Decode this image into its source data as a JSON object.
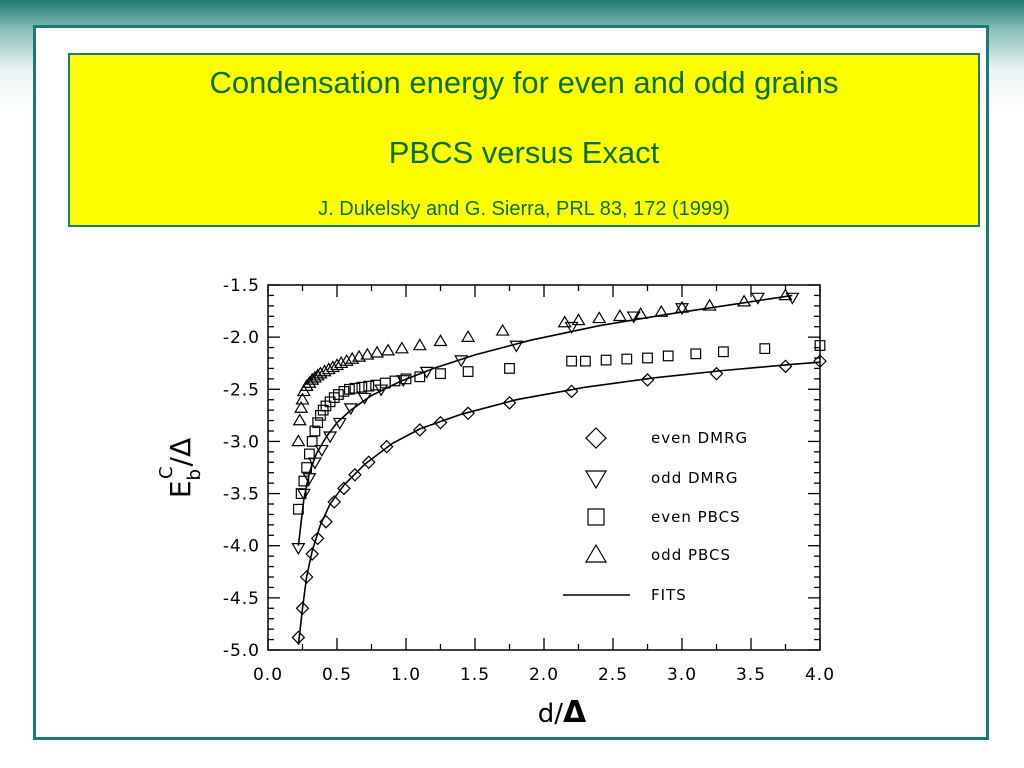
{
  "slide": {
    "title_line1": "Condensation energy for even and odd grains",
    "title_line2": "PBCS versus Exact",
    "citation": "J. Dukelsky and G. Sierra, PRL 83, 172 (1999)"
  },
  "colors": {
    "frame": "#1b7a73",
    "title_box": "#ffff00",
    "title_text": "#0a6e2a"
  },
  "chart_data": {
    "type": "scatter",
    "xlabel_main": "d/",
    "xlabel_symbol": "Δ",
    "ylabel_main": "E",
    "ylabel_sub": "b",
    "ylabel_sup": "C",
    "ylabel_tail": "/Δ",
    "xlim": [
      0.0,
      4.0
    ],
    "ylim": [
      -5.0,
      -1.5
    ],
    "xticks": [
      "0.0",
      "0.5",
      "1.0",
      "1.5",
      "2.0",
      "2.5",
      "3.0",
      "3.5",
      "4.0"
    ],
    "yticks": [
      "-1.5",
      "-2.0",
      "-2.5",
      "-3.0",
      "-3.5",
      "-4.0",
      "-4.5",
      "-5.0"
    ],
    "legend_position": "lower-right",
    "series": [
      {
        "name": "even DMRG",
        "marker": "diamond",
        "x": [
          0.22,
          0.25,
          0.28,
          0.32,
          0.36,
          0.42,
          0.48,
          0.55,
          0.63,
          0.73,
          0.86,
          1.1,
          1.25,
          1.45,
          1.75,
          2.2,
          2.75,
          3.25,
          3.75,
          4.0
        ],
        "y": [
          -4.88,
          -4.6,
          -4.3,
          -4.08,
          -3.93,
          -3.77,
          -3.58,
          -3.45,
          -3.32,
          -3.2,
          -3.05,
          -2.89,
          -2.82,
          -2.73,
          -2.63,
          -2.52,
          -2.41,
          -2.35,
          -2.28,
          -2.23
        ]
      },
      {
        "name": "odd DMRG",
        "marker": "triangle-down",
        "x": [
          0.22,
          0.26,
          0.3,
          0.34,
          0.39,
          0.45,
          0.52,
          0.6,
          0.7,
          0.82,
          0.98,
          1.15,
          1.4,
          1.8,
          2.2,
          2.65,
          3.0,
          3.55,
          3.8
        ],
        "y": [
          -4.02,
          -3.5,
          -3.35,
          -3.2,
          -3.08,
          -2.95,
          -2.82,
          -2.68,
          -2.58,
          -2.5,
          -2.41,
          -2.33,
          -2.22,
          -2.08,
          -1.9,
          -1.8,
          -1.72,
          -1.62,
          -1.62
        ]
      },
      {
        "name": "even PBCS",
        "marker": "square",
        "x": [
          0.22,
          0.24,
          0.26,
          0.28,
          0.3,
          0.32,
          0.34,
          0.36,
          0.38,
          0.4,
          0.42,
          0.45,
          0.48,
          0.51,
          0.55,
          0.59,
          0.63,
          0.68,
          0.73,
          0.78,
          0.85,
          0.92,
          1.0,
          1.1,
          1.25,
          1.45,
          1.75,
          2.2,
          2.3,
          2.45,
          2.6,
          2.75,
          2.9,
          3.1,
          3.3,
          3.6,
          4.0
        ],
        "y": [
          -3.65,
          -3.5,
          -3.38,
          -3.25,
          -3.12,
          -3.0,
          -2.9,
          -2.82,
          -2.75,
          -2.7,
          -2.66,
          -2.62,
          -2.58,
          -2.55,
          -2.52,
          -2.5,
          -2.49,
          -2.48,
          -2.47,
          -2.46,
          -2.44,
          -2.42,
          -2.4,
          -2.38,
          -2.35,
          -2.33,
          -2.3,
          -2.23,
          -2.23,
          -2.22,
          -2.21,
          -2.2,
          -2.18,
          -2.16,
          -2.14,
          -2.11,
          -2.08
        ]
      },
      {
        "name": "odd PBCS",
        "marker": "triangle-up",
        "x": [
          0.22,
          0.23,
          0.24,
          0.25,
          0.26,
          0.28,
          0.3,
          0.32,
          0.34,
          0.36,
          0.38,
          0.41,
          0.44,
          0.47,
          0.5,
          0.53,
          0.57,
          0.61,
          0.66,
          0.72,
          0.79,
          0.87,
          0.97,
          1.1,
          1.25,
          1.45,
          1.7,
          2.15,
          2.25,
          2.4,
          2.55,
          2.7,
          2.85,
          3.0,
          3.2,
          3.45,
          3.75
        ],
        "y": [
          -3.0,
          -2.8,
          -2.68,
          -2.6,
          -2.52,
          -2.47,
          -2.44,
          -2.41,
          -2.39,
          -2.37,
          -2.35,
          -2.33,
          -2.31,
          -2.29,
          -2.27,
          -2.25,
          -2.23,
          -2.21,
          -2.19,
          -2.17,
          -2.15,
          -2.13,
          -2.11,
          -2.08,
          -2.04,
          -2.0,
          -1.94,
          -1.86,
          -1.84,
          -1.82,
          -1.8,
          -1.78,
          -1.76,
          -1.72,
          -1.7,
          -1.66,
          -1.6
        ]
      },
      {
        "name": "FITS",
        "marker": "line",
        "lines": [
          {
            "x": [
              0.22,
              0.25,
              0.28,
              0.32,
              0.38,
              0.45,
              0.55,
              0.7,
              0.9,
              1.1,
              1.4,
              1.8,
              2.3,
              2.8,
              3.3,
              3.8,
              4.0
            ],
            "y": [
              -4.95,
              -4.6,
              -4.3,
              -4.05,
              -3.8,
              -3.6,
              -3.42,
              -3.22,
              -3.02,
              -2.88,
              -2.74,
              -2.6,
              -2.48,
              -2.39,
              -2.32,
              -2.26,
              -2.24
            ]
          },
          {
            "x": [
              0.22,
              0.26,
              0.3,
              0.35,
              0.42,
              0.5,
              0.6,
              0.75,
              0.95,
              1.2,
              1.5,
              1.9,
              2.4,
              2.9,
              3.4,
              3.8
            ],
            "y": [
              -4.0,
              -3.55,
              -3.3,
              -3.12,
              -2.96,
              -2.82,
              -2.7,
              -2.56,
              -2.43,
              -2.3,
              -2.17,
              -2.03,
              -1.89,
              -1.78,
              -1.68,
              -1.6
            ]
          }
        ]
      }
    ]
  }
}
